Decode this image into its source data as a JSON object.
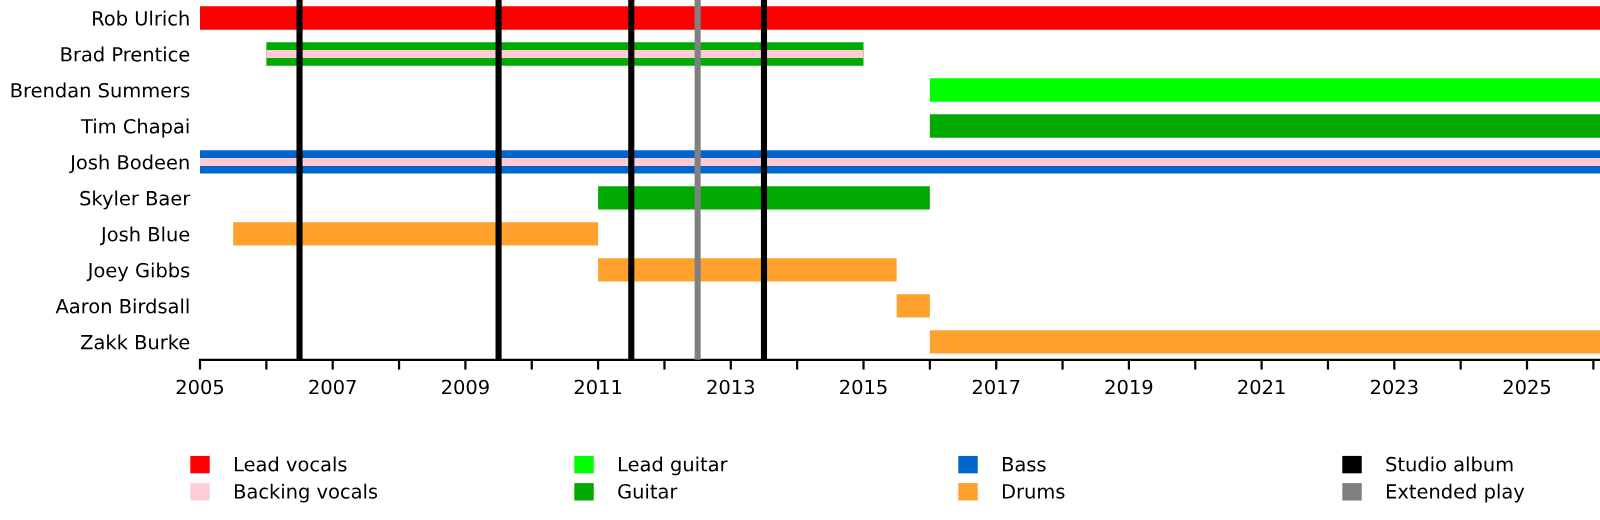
{
  "chart_data": {
    "type": "bar",
    "orientation": "horizontal",
    "categories": [
      "Rob Ulrich",
      "Brad Prentice",
      "Brendan Summers",
      "Tim Chapai",
      "Josh Bodeen",
      "Skyler Baer",
      "Josh Blue",
      "Joey Gibbs",
      "Aaron Birdsall",
      "Zakk Burke"
    ],
    "series": [
      {
        "name": "Lead vocals",
        "color": "#ff0000",
        "base": [
          2005,
          null,
          null,
          null,
          null,
          null,
          null,
          null,
          null,
          null
        ],
        "values": [
          21.1,
          null,
          null,
          null,
          null,
          null,
          null,
          null,
          null,
          null
        ]
      },
      {
        "name": "Lead guitar",
        "color": "#00ff00",
        "base": [
          null,
          null,
          2016,
          null,
          null,
          null,
          null,
          null,
          null,
          null
        ],
        "values": [
          null,
          null,
          10.1,
          null,
          null,
          null,
          null,
          null,
          null,
          null
        ]
      },
      {
        "name": "Guitar",
        "color": "#00aa00",
        "base": [
          null,
          2006,
          null,
          2016,
          null,
          2011,
          null,
          null,
          null,
          null
        ],
        "values": [
          null,
          9,
          null,
          10.1,
          null,
          5,
          null,
          null,
          null,
          null
        ]
      },
      {
        "name": "Bass",
        "color": "#0066cc",
        "base": [
          null,
          null,
          null,
          null,
          2005,
          null,
          null,
          null,
          null,
          null
        ],
        "values": [
          null,
          null,
          null,
          null,
          21.1,
          null,
          null,
          null,
          null,
          null
        ]
      },
      {
        "name": "Drums",
        "color": "#ffa12c",
        "base": [
          null,
          null,
          null,
          null,
          null,
          null,
          2005.5,
          2011,
          2015.5,
          2016
        ],
        "values": [
          null,
          null,
          null,
          null,
          null,
          null,
          5.5,
          4.5,
          0.5,
          10.1
        ]
      },
      {
        "name": "Backing vocals",
        "color": "#ffccd5",
        "base": [
          null,
          2006,
          null,
          null,
          2005,
          null,
          null,
          null,
          null,
          null
        ],
        "values": [
          null,
          9,
          null,
          null,
          21.1,
          null,
          null,
          null,
          null,
          null
        ]
      }
    ],
    "ref_lines": [
      {
        "axis": "x",
        "value": 2006.5,
        "label": "Studio album",
        "color": "#000000"
      },
      {
        "axis": "x",
        "value": 2009.5,
        "color": "#000000"
      },
      {
        "axis": "x",
        "value": 2011.5,
        "color": "#000000"
      },
      {
        "axis": "x",
        "value": 2013.5,
        "color": "#000000"
      },
      {
        "axis": "x",
        "value": 2012.5,
        "label": "Extended play",
        "color": "#808080"
      }
    ],
    "xlim": [
      2005,
      2026.1
    ],
    "xticks": [
      2005,
      {
        "value": 2006,
        "label": null
      },
      2007,
      {
        "value": 2008,
        "label": null
      },
      2009,
      {
        "value": 2010,
        "label": null
      },
      2011,
      {
        "value": 2012,
        "label": null
      },
      2013,
      {
        "value": 2014,
        "label": null
      },
      2015,
      {
        "value": 2016,
        "label": null
      },
      2017,
      {
        "value": 2018,
        "label": null
      },
      2019,
      {
        "value": 2020,
        "label": null
      },
      2021,
      {
        "value": 2022,
        "label": null
      },
      2023,
      {
        "value": 2024,
        "label": null
      },
      2025,
      {
        "value": 2026,
        "label": null
      }
    ],
    "legend": "bottom",
    "grid": false
  }
}
